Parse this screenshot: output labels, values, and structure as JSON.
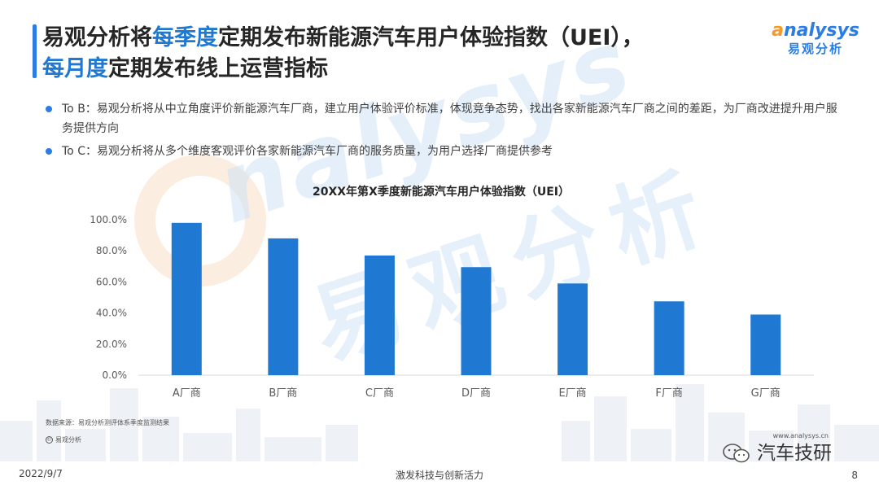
{
  "header": {
    "title_line1_pre": "易观分析将",
    "title_line1_hl": "每季度",
    "title_line1_post": "定期发布新能源汽车用户体验指数（UEI），",
    "title_line2_hl": "每月度",
    "title_line2_post": "定期发布线上运营指标"
  },
  "logo": {
    "en_first": "a",
    "en_rest": "nalysys",
    "cn": "易观分析"
  },
  "watermark": {
    "text_en": "nalysys",
    "text_cn": "易观分析"
  },
  "bullets": [
    {
      "text": "To B：易观分析将从中立角度评价新能源汽车厂商，建立用户体验评价标准，体现竞争态势，找出各家新能源汽车厂商之间的差距，为厂商改进提升用户服务提供方向"
    },
    {
      "text": "To C：易观分析将从多个维度客观评价各家新能源汽车厂商的服务质量，为用户选择厂商提供参考"
    }
  ],
  "chart_data": {
    "type": "bar",
    "title": "20XX年第X季度新能源汽车用户体验指数（UEI）",
    "categories": [
      "A厂商",
      "B厂商",
      "C厂商",
      "D厂商",
      "E厂商",
      "F厂商",
      "G厂商"
    ],
    "values": [
      98,
      88,
      77,
      69.5,
      59,
      47.5,
      39
    ],
    "unit": "%",
    "ylim": [
      0,
      100
    ],
    "yticks": [
      "0.0%",
      "20.0%",
      "40.0%",
      "60.0%",
      "80.0%",
      "100.0%"
    ],
    "bar_color": "#1f78d1",
    "grid": false,
    "legend": "none"
  },
  "footer": {
    "source": "数据来源：易观分析测评体系季度监测结果",
    "copyright": "易观分析",
    "copyright_symbol": "©",
    "website": "www.analysys.cn",
    "date": "2022/9/7",
    "slogan": "激发科技与创新活力",
    "page": "8",
    "wechat_account": "汽车技研"
  },
  "colors": {
    "accent": "#2b7de3",
    "highlight": "#1f78d1",
    "logo_orange": "#f39a2b"
  }
}
